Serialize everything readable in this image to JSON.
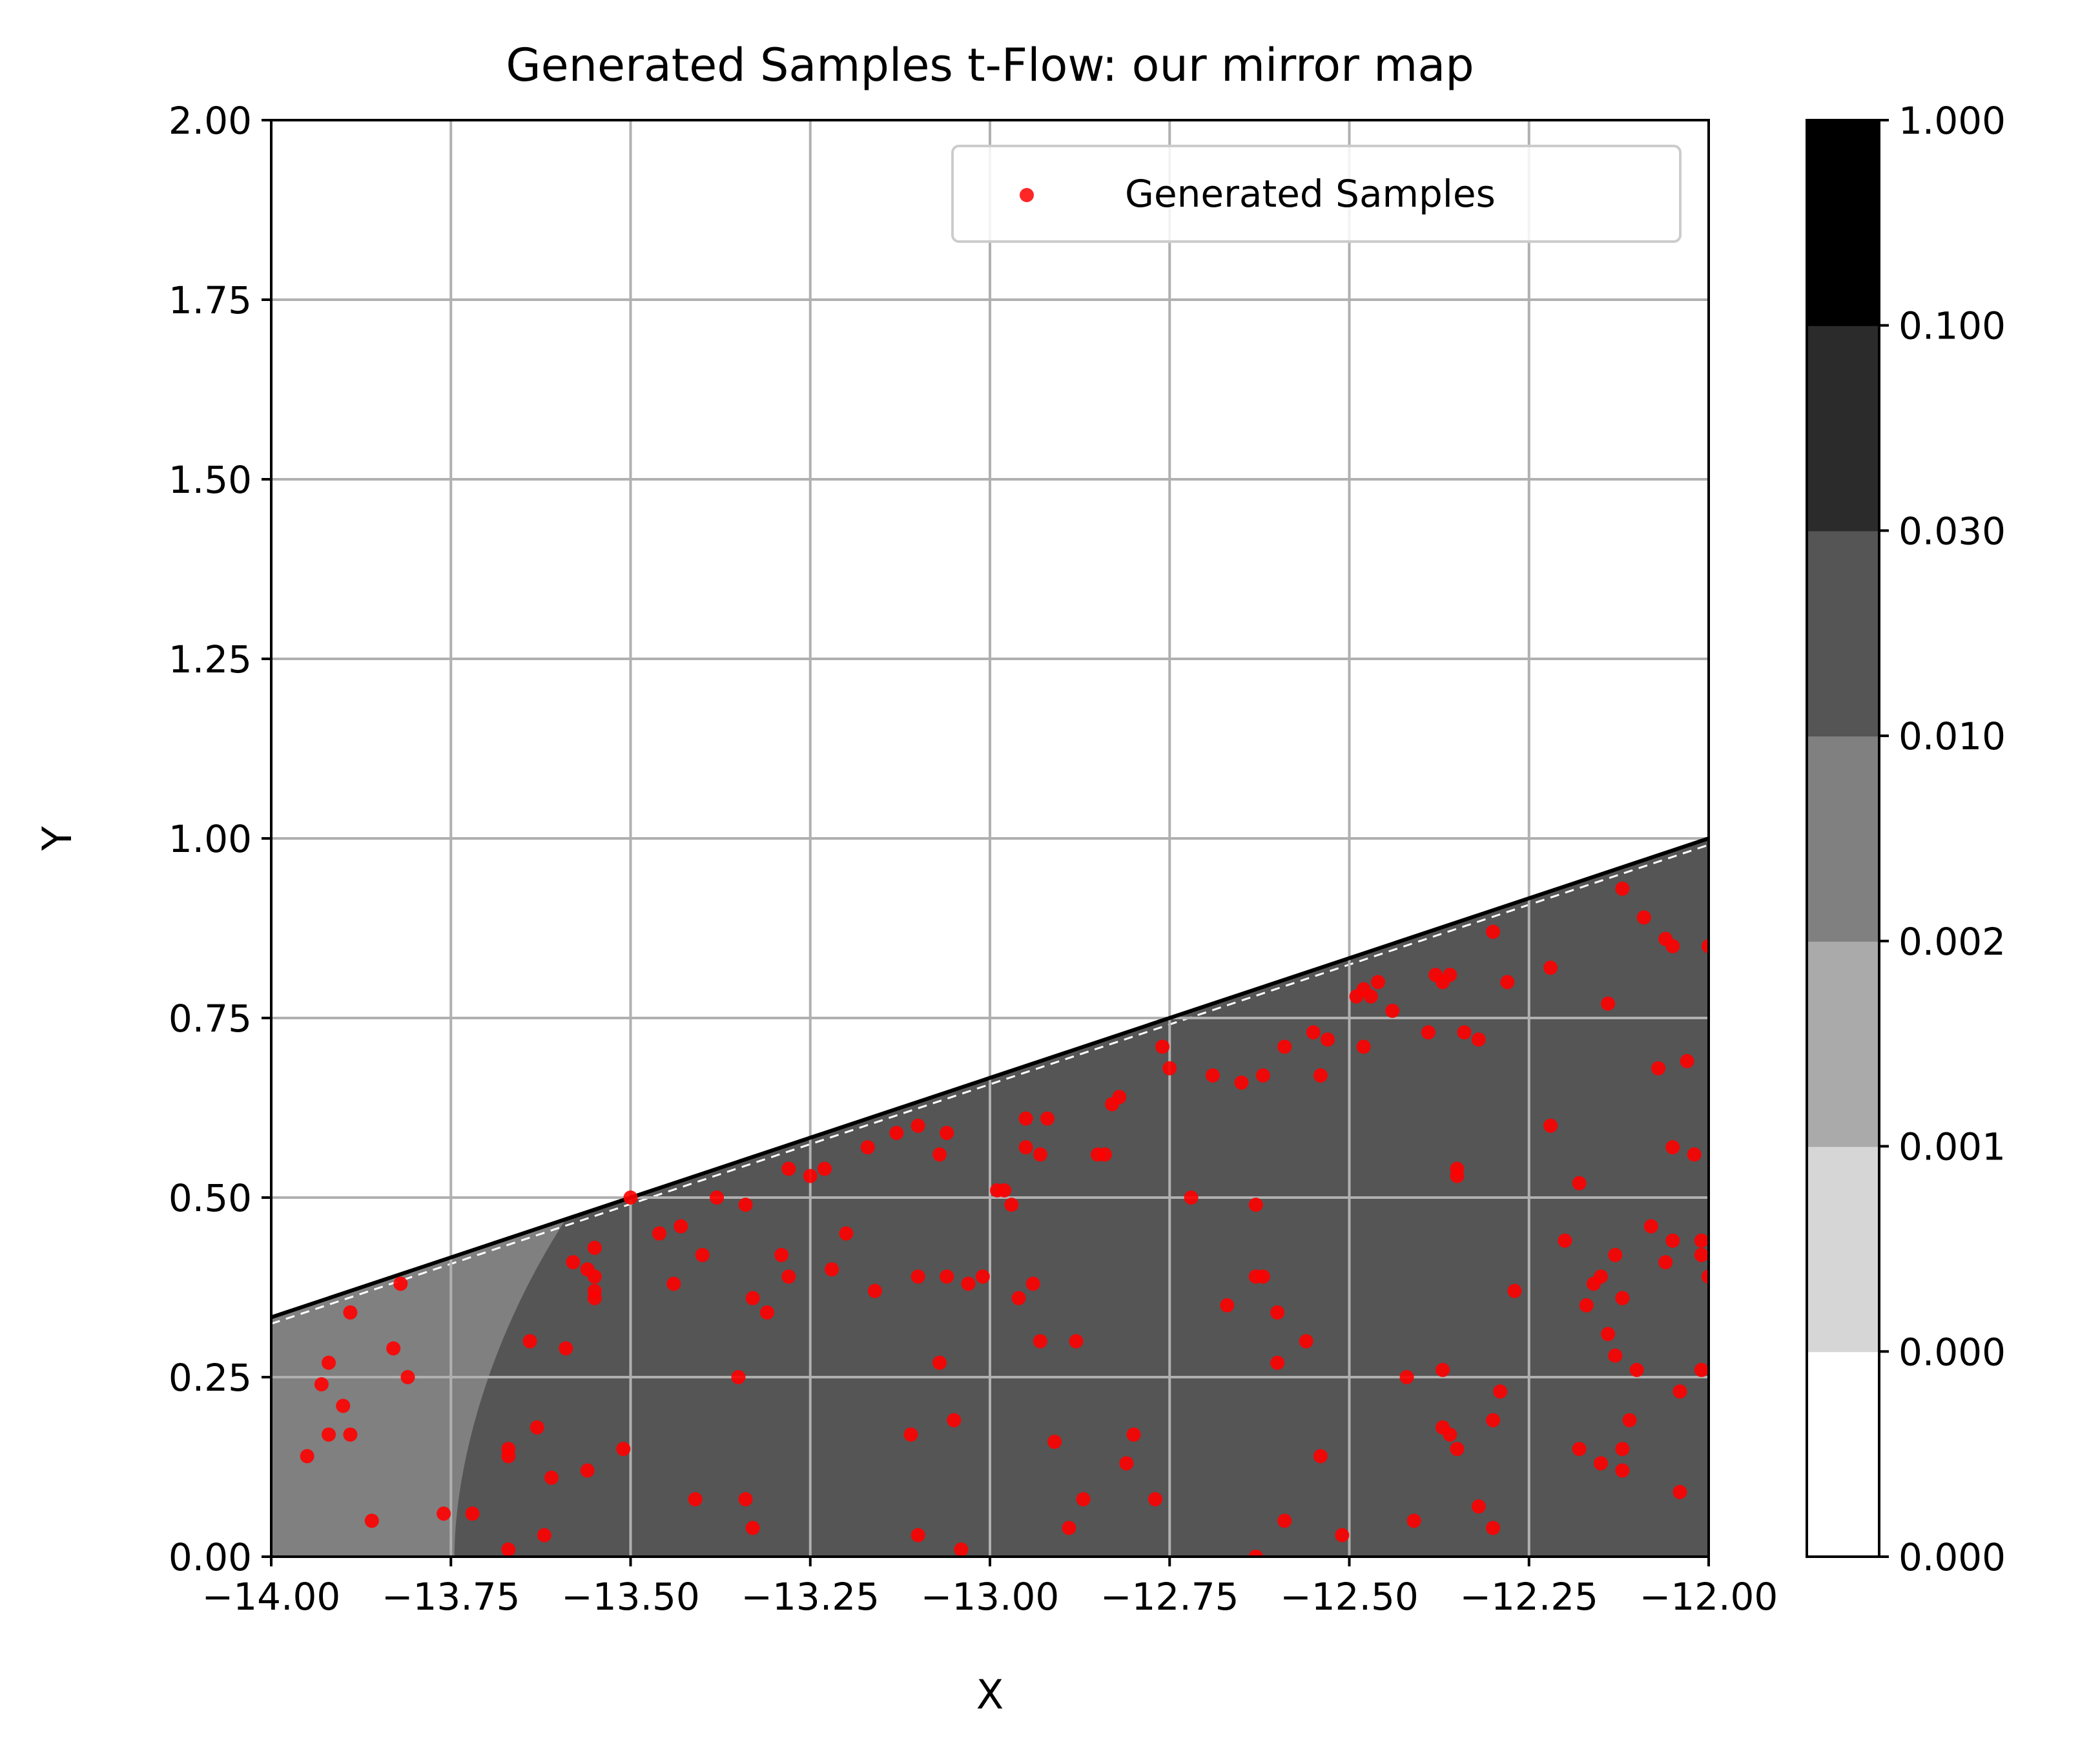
{
  "chart_data": {
    "type": "scatter",
    "title": "Generated Samples t-Flow: our mirror map",
    "xlabel": "X",
    "ylabel": "Y",
    "xlim": [
      -14.0,
      -12.0
    ],
    "ylim": [
      0.0,
      2.0
    ],
    "x_ticks": [
      "−14.00",
      "−13.75",
      "−13.50",
      "−13.25",
      "−13.00",
      "−12.75",
      "−12.50",
      "−12.25",
      "−12.00"
    ],
    "y_ticks": [
      "0.00",
      "0.25",
      "0.50",
      "0.75",
      "1.00",
      "1.25",
      "1.50",
      "1.75",
      "2.00"
    ],
    "grid": true,
    "legend": {
      "position": "top-right",
      "entries": [
        "Generated Samples"
      ]
    },
    "boundary_line": {
      "x": [
        -14.0,
        -12.0
      ],
      "y": [
        0.3333,
        1.0
      ],
      "color": "#000000"
    },
    "density_regions": [
      {
        "level": "0.002",
        "color": "#808080",
        "description": "left strip x < about -13.72"
      },
      {
        "level": "0.010",
        "color": "#555555",
        "description": "main region below boundary line"
      }
    ],
    "colorbar": {
      "tick_labels": [
        "0.000",
        "0.000",
        "0.001",
        "0.002",
        "0.010",
        "0.030",
        "0.100",
        "1.000"
      ],
      "colors": [
        "#ffffff",
        "#d6d6d6",
        "#aaaaaa",
        "#808080",
        "#555555",
        "#2b2b2b",
        "#000000"
      ]
    },
    "series": [
      {
        "name": "Generated Samples",
        "color": "#ff0000",
        "points": [
          [
            -13.95,
            0.14
          ],
          [
            -13.93,
            0.24
          ],
          [
            -13.92,
            0.27
          ],
          [
            -13.92,
            0.17
          ],
          [
            -13.9,
            0.21
          ],
          [
            -13.89,
            0.34
          ],
          [
            -13.89,
            0.17
          ],
          [
            -13.86,
            0.05
          ],
          [
            -13.83,
            0.29
          ],
          [
            -13.82,
            0.38
          ],
          [
            -13.81,
            0.25
          ],
          [
            -13.76,
            0.06
          ],
          [
            -13.72,
            0.06
          ],
          [
            -13.67,
            0.01
          ],
          [
            -13.67,
            0.14
          ],
          [
            -13.67,
            0.15
          ],
          [
            -13.64,
            0.3
          ],
          [
            -13.63,
            0.18
          ],
          [
            -13.62,
            0.03
          ],
          [
            -13.61,
            0.11
          ],
          [
            -13.59,
            0.29
          ],
          [
            -13.58,
            0.41
          ],
          [
            -13.56,
            0.4
          ],
          [
            -13.56,
            0.12
          ],
          [
            -13.55,
            0.43
          ],
          [
            -13.55,
            0.39
          ],
          [
            -13.55,
            0.37
          ],
          [
            -13.55,
            0.36
          ],
          [
            -13.51,
            0.15
          ],
          [
            -13.5,
            0.5
          ],
          [
            -13.46,
            0.45
          ],
          [
            -13.44,
            0.38
          ],
          [
            -13.43,
            0.46
          ],
          [
            -13.41,
            0.08
          ],
          [
            -13.4,
            0.42
          ],
          [
            -13.38,
            0.5
          ],
          [
            -13.35,
            0.25
          ],
          [
            -13.34,
            0.08
          ],
          [
            -13.34,
            0.49
          ],
          [
            -13.33,
            0.36
          ],
          [
            -13.33,
            0.04
          ],
          [
            -13.31,
            0.34
          ],
          [
            -13.29,
            0.42
          ],
          [
            -13.28,
            0.39
          ],
          [
            -13.28,
            0.54
          ],
          [
            -13.25,
            0.53
          ],
          [
            -13.23,
            0.54
          ],
          [
            -13.22,
            0.4
          ],
          [
            -13.2,
            0.45
          ],
          [
            -13.17,
            0.57
          ],
          [
            -13.16,
            0.37
          ],
          [
            -13.13,
            0.59
          ],
          [
            -13.11,
            0.17
          ],
          [
            -13.1,
            0.6
          ],
          [
            -13.1,
            0.39
          ],
          [
            -13.1,
            0.03
          ],
          [
            -13.07,
            0.56
          ],
          [
            -13.07,
            0.27
          ],
          [
            -13.06,
            0.39
          ],
          [
            -13.06,
            0.59
          ],
          [
            -13.05,
            0.19
          ],
          [
            -13.04,
            0.01
          ],
          [
            -13.03,
            0.38
          ],
          [
            -13.01,
            0.39
          ],
          [
            -12.99,
            0.51
          ],
          [
            -12.98,
            0.51
          ],
          [
            -12.97,
            0.49
          ],
          [
            -12.96,
            0.36
          ],
          [
            -12.95,
            0.61
          ],
          [
            -12.95,
            0.57
          ],
          [
            -12.94,
            0.38
          ],
          [
            -12.93,
            0.3
          ],
          [
            -12.93,
            0.56
          ],
          [
            -12.92,
            0.61
          ],
          [
            -12.91,
            0.16
          ],
          [
            -12.89,
            0.04
          ],
          [
            -12.88,
            0.3
          ],
          [
            -12.87,
            0.08
          ],
          [
            -12.85,
            0.56
          ],
          [
            -12.84,
            0.56
          ],
          [
            -12.83,
            0.63
          ],
          [
            -12.82,
            0.64
          ],
          [
            -12.81,
            0.13
          ],
          [
            -12.8,
            0.17
          ],
          [
            -12.77,
            0.08
          ],
          [
            -12.76,
            0.71
          ],
          [
            -12.75,
            0.68
          ],
          [
            -12.72,
            0.5
          ],
          [
            -12.69,
            0.67
          ],
          [
            -12.67,
            0.35
          ],
          [
            -12.65,
            0.66
          ],
          [
            -12.63,
            0.49
          ],
          [
            -12.63,
            0.39
          ],
          [
            -12.63,
            0.0
          ],
          [
            -12.62,
            0.39
          ],
          [
            -12.62,
            0.67
          ],
          [
            -12.6,
            0.27
          ],
          [
            -12.6,
            0.34
          ],
          [
            -12.59,
            0.71
          ],
          [
            -12.59,
            0.05
          ],
          [
            -12.56,
            0.3
          ],
          [
            -12.55,
            0.73
          ],
          [
            -12.54,
            0.67
          ],
          [
            -12.54,
            0.14
          ],
          [
            -12.53,
            0.72
          ],
          [
            -12.51,
            0.03
          ],
          [
            -12.49,
            0.78
          ],
          [
            -12.48,
            0.79
          ],
          [
            -12.48,
            0.71
          ],
          [
            -12.47,
            0.78
          ],
          [
            -12.46,
            0.8
          ],
          [
            -12.44,
            0.76
          ],
          [
            -12.42,
            0.25
          ],
          [
            -12.41,
            0.05
          ],
          [
            -12.39,
            0.73
          ],
          [
            -12.38,
            0.81
          ],
          [
            -12.37,
            0.8
          ],
          [
            -12.37,
            0.26
          ],
          [
            -12.37,
            0.18
          ],
          [
            -12.36,
            0.81
          ],
          [
            -12.36,
            0.17
          ],
          [
            -12.35,
            0.15
          ],
          [
            -12.35,
            0.54
          ],
          [
            -12.35,
            0.53
          ],
          [
            -12.34,
            0.73
          ],
          [
            -12.32,
            0.72
          ],
          [
            -12.32,
            0.07
          ],
          [
            -12.3,
            0.87
          ],
          [
            -12.3,
            0.19
          ],
          [
            -12.3,
            0.04
          ],
          [
            -12.29,
            0.23
          ],
          [
            -12.28,
            0.8
          ],
          [
            -12.27,
            0.37
          ],
          [
            -12.22,
            0.82
          ],
          [
            -12.22,
            0.6
          ],
          [
            -12.2,
            0.44
          ],
          [
            -12.18,
            0.52
          ],
          [
            -12.18,
            0.15
          ],
          [
            -12.17,
            0.35
          ],
          [
            -12.16,
            0.38
          ],
          [
            -12.15,
            0.13
          ],
          [
            -12.15,
            0.39
          ],
          [
            -12.14,
            0.31
          ],
          [
            -12.14,
            0.77
          ],
          [
            -12.13,
            0.42
          ],
          [
            -12.13,
            0.28
          ],
          [
            -12.12,
            0.12
          ],
          [
            -12.12,
            0.15
          ],
          [
            -12.12,
            0.93
          ],
          [
            -12.12,
            0.36
          ],
          [
            -12.11,
            0.19
          ],
          [
            -12.1,
            0.26
          ],
          [
            -12.09,
            0.89
          ],
          [
            -12.08,
            0.46
          ],
          [
            -12.07,
            0.68
          ],
          [
            -12.06,
            0.41
          ],
          [
            -12.06,
            0.86
          ],
          [
            -12.05,
            0.57
          ],
          [
            -12.05,
            0.44
          ],
          [
            -12.05,
            0.85
          ],
          [
            -12.04,
            0.09
          ],
          [
            -12.04,
            0.23
          ],
          [
            -12.03,
            0.69
          ],
          [
            -12.02,
            0.56
          ],
          [
            -12.01,
            0.42
          ],
          [
            -12.01,
            0.44
          ],
          [
            -12.01,
            0.26
          ],
          [
            -12.0,
            0.85
          ],
          [
            -12.0,
            0.39
          ]
        ]
      }
    ]
  }
}
